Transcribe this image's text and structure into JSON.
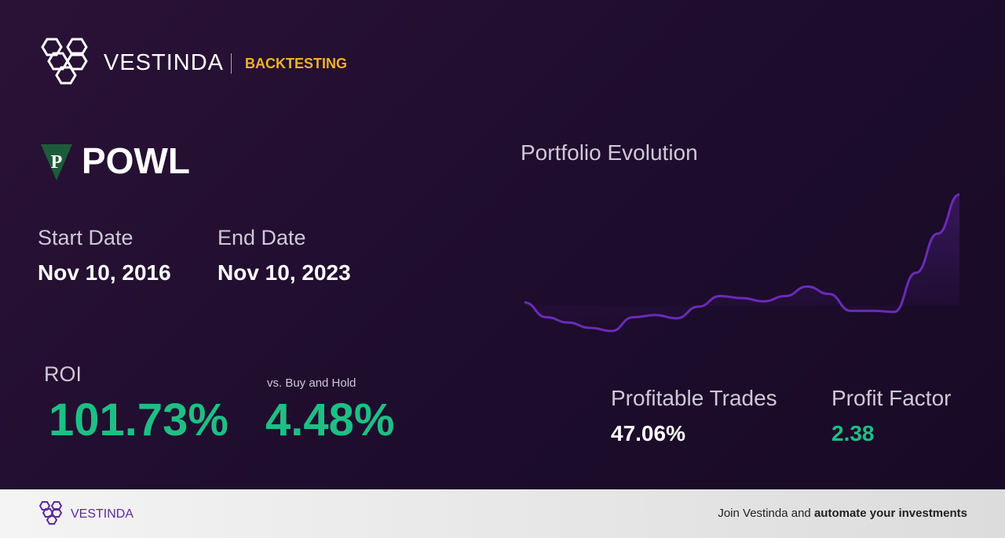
{
  "header": {
    "brand": "VESTINDA",
    "section": "BACKTESTING"
  },
  "ticker": {
    "logo_letter": "P",
    "symbol": "POWL"
  },
  "dates": {
    "start_label": "Start Date",
    "start": "Nov 10, 2016",
    "end_label": "End Date",
    "end": "Nov 10, 2023"
  },
  "roi": {
    "label": "ROI",
    "value": "101.73%",
    "vs_label": "vs. Buy and Hold",
    "vs_value": "4.48%"
  },
  "stats": {
    "trades_label": "Profitable Trades",
    "trades_value": "47.06%",
    "factor_label": "Profit Factor",
    "factor_value": "2.38"
  },
  "portfolio_chart": {
    "type": "line",
    "title": "Portfolio Evolution",
    "color": "#6a2bb8",
    "values": [
      100,
      86,
      81,
      76,
      73,
      86,
      88,
      85,
      96,
      106,
      104,
      101,
      106,
      115,
      108,
      92,
      92,
      91,
      128,
      165,
      202
    ]
  },
  "footer": {
    "brand": "VESTINDA",
    "cta": "Join Vestinda and",
    "cta_bold": "automate your investments"
  }
}
